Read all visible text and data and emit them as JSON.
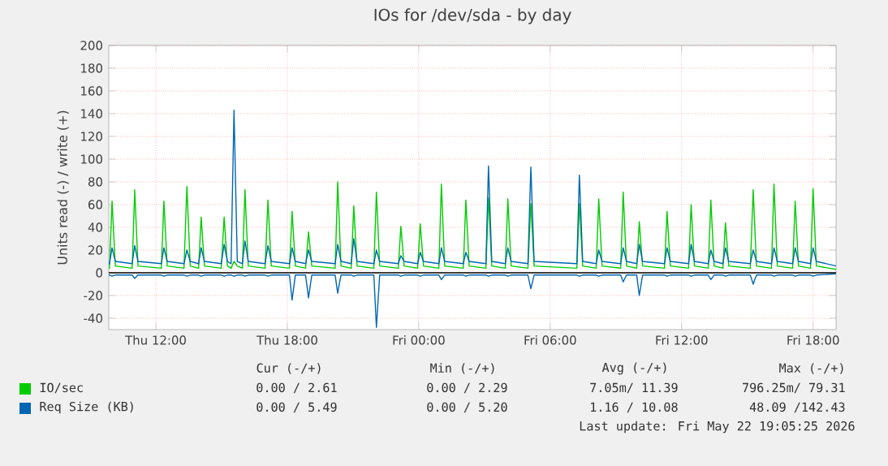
{
  "chart_data": {
    "type": "line",
    "title": "IOs for /dev/sda - by day",
    "ylabel": "Units read (-) / write (+)",
    "x": [
      "2026-05-21T09:51",
      "2026-05-21T09:53",
      "2026-05-21T10:00",
      "2026-05-21T10:09",
      "2026-05-21T10:55",
      "2026-05-21T11:02",
      "2026-05-21T11:11",
      "2026-05-21T12:15",
      "2026-05-21T12:22",
      "2026-05-21T12:31",
      "2026-05-21T13:17",
      "2026-05-21T13:25",
      "2026-05-21T13:34",
      "2026-05-21T13:57",
      "2026-05-21T14:04",
      "2026-05-21T14:13",
      "2026-05-21T14:59",
      "2026-05-21T15:07",
      "2026-05-21T15:16",
      "2026-05-21T15:26",
      "2026-05-21T15:34",
      "2026-05-21T15:43",
      "2026-05-21T15:57",
      "2026-05-21T16:04",
      "2026-05-21T16:13",
      "2026-05-21T16:59",
      "2026-05-21T17:07",
      "2026-05-21T17:16",
      "2026-05-21T18:06",
      "2026-05-21T18:13",
      "2026-05-21T18:22",
      "2026-05-21T18:50",
      "2026-05-21T18:58",
      "2026-05-21T19:07",
      "2026-05-21T20:11",
      "2026-05-21T20:18",
      "2026-05-21T20:27",
      "2026-05-21T20:55",
      "2026-05-21T21:02",
      "2026-05-21T21:11",
      "2026-05-21T21:57",
      "2026-05-21T22:04",
      "2026-05-21T22:13",
      "2026-05-21T23:04",
      "2026-05-21T23:11",
      "2026-05-21T23:20",
      "2026-05-21T23:57",
      "2026-05-22T00:04",
      "2026-05-22T00:13",
      "2026-05-22T00:55",
      "2026-05-22T01:02",
      "2026-05-22T01:11",
      "2026-05-22T02:02",
      "2026-05-22T02:09",
      "2026-05-22T02:18",
      "2026-05-22T03:04",
      "2026-05-22T03:11",
      "2026-05-22T03:20",
      "2026-05-22T03:57",
      "2026-05-22T04:04",
      "2026-05-22T04:13",
      "2026-05-22T04:59",
      "2026-05-22T05:07",
      "2026-05-22T05:16",
      "2026-05-22T07:13",
      "2026-05-22T07:20",
      "2026-05-22T07:29",
      "2026-05-22T08:06",
      "2026-05-22T08:13",
      "2026-05-22T08:22",
      "2026-05-22T09:13",
      "2026-05-22T09:20",
      "2026-05-22T09:29",
      "2026-05-22T09:57",
      "2026-05-22T10:04",
      "2026-05-22T10:13",
      "2026-05-22T11:13",
      "2026-05-22T11:20",
      "2026-05-22T11:29",
      "2026-05-22T12:19",
      "2026-05-22T12:26",
      "2026-05-22T12:35",
      "2026-05-22T13:13",
      "2026-05-22T13:20",
      "2026-05-22T13:29",
      "2026-05-22T13:53",
      "2026-05-22T14:00",
      "2026-05-22T14:09",
      "2026-05-22T15:08",
      "2026-05-22T15:16",
      "2026-05-22T15:25",
      "2026-05-22T16:06",
      "2026-05-22T16:13",
      "2026-05-22T16:22",
      "2026-05-22T17:04",
      "2026-05-22T17:11",
      "2026-05-22T17:20",
      "2026-05-22T17:53",
      "2026-05-22T18:00",
      "2026-05-22T18:09",
      "2026-05-22T19:03"
    ],
    "series": [
      {
        "name": "IO/sec",
        "color": "#00cc00",
        "values": [
          4,
          4,
          63,
          6,
          4,
          73,
          6,
          4,
          63,
          6,
          4,
          76,
          6,
          4,
          49,
          6,
          4,
          49,
          6,
          4,
          10,
          6,
          4,
          73,
          6,
          4,
          64,
          6,
          4,
          54,
          6,
          4,
          36,
          6,
          4,
          80,
          6,
          4,
          59,
          6,
          4,
          71,
          6,
          4,
          41,
          6,
          4,
          43,
          6,
          4,
          78,
          6,
          4,
          64,
          6,
          4,
          66,
          6,
          4,
          65,
          6,
          4,
          61,
          6,
          4,
          61,
          6,
          4,
          65,
          6,
          4,
          71,
          6,
          4,
          45,
          6,
          4,
          54,
          6,
          4,
          60,
          6,
          4,
          64,
          6,
          4,
          44,
          6,
          4,
          73,
          6,
          4,
          78,
          6,
          4,
          63,
          6,
          4,
          74,
          6,
          3
        ]
      },
      {
        "name": "Req Size (KB)",
        "color": "#0066b3",
        "values": [
          8,
          8,
          22,
          10,
          8,
          24,
          10,
          8,
          22,
          10,
          8,
          20,
          10,
          8,
          22,
          10,
          8,
          25,
          10,
          8,
          143,
          10,
          8,
          28,
          10,
          8,
          24,
          10,
          8,
          22,
          10,
          8,
          20,
          10,
          8,
          25,
          10,
          8,
          30,
          10,
          8,
          20,
          10,
          8,
          15,
          10,
          8,
          18,
          10,
          8,
          22,
          10,
          8,
          18,
          10,
          8,
          94,
          10,
          8,
          22,
          10,
          8,
          93,
          10,
          8,
          86,
          10,
          8,
          20,
          10,
          8,
          22,
          10,
          8,
          25,
          10,
          8,
          22,
          10,
          8,
          25,
          10,
          8,
          20,
          10,
          8,
          22,
          10,
          8,
          20,
          10,
          8,
          22,
          10,
          8,
          22,
          10,
          8,
          22,
          10,
          6
        ]
      },
      {
        "color": "#0066b3",
        "values": [
          -2,
          -2,
          -3,
          -2,
          -2,
          -5,
          -2,
          -2,
          -3,
          -2,
          -2,
          -3,
          -2,
          -2,
          -3,
          -2,
          -2,
          -3,
          -2,
          -2,
          -3,
          -2,
          -2,
          -3,
          -2,
          -2,
          -3,
          -2,
          -2,
          -24,
          -2,
          -2,
          -22,
          -2,
          -2,
          -18,
          -2,
          -2,
          -3,
          -2,
          -2,
          -48,
          -2,
          -2,
          -3,
          -2,
          -2,
          -3,
          -2,
          -2,
          -6,
          -2,
          -2,
          -3,
          -2,
          -2,
          -3,
          -2,
          -2,
          -3,
          -2,
          -2,
          -14,
          -2,
          -2,
          -3,
          -2,
          -2,
          -3,
          -2,
          -2,
          -8,
          -2,
          -2,
          -20,
          -2,
          -2,
          -3,
          -2,
          -2,
          -3,
          -2,
          -2,
          -6,
          -2,
          -2,
          -3,
          -2,
          -2,
          -10,
          -2,
          -2,
          -3,
          -2,
          -2,
          -3,
          -2,
          -2,
          -3,
          -2,
          -1
        ]
      }
    ],
    "xlim": [
      "2026-05-21T09:51",
      "2026-05-22T19:03"
    ],
    "xticks": [
      {
        "value": "2026-05-21T12:00",
        "label": "Thu 12:00"
      },
      {
        "value": "2026-05-21T18:00",
        "label": "Thu 18:00"
      },
      {
        "value": "2026-05-22T00:00",
        "label": "Fri 00:00"
      },
      {
        "value": "2026-05-22T06:00",
        "label": "Fri 06:00"
      },
      {
        "value": "2026-05-22T12:00",
        "label": "Fri 12:00"
      },
      {
        "value": "2026-05-22T18:00",
        "label": "Fri 18:00"
      }
    ],
    "ylim": [
      -50,
      200
    ],
    "yticks": [
      -40,
      -20,
      0,
      20,
      40,
      60,
      80,
      100,
      120,
      140,
      160,
      180,
      200
    ],
    "ref_lines": [
      {
        "axis": "y",
        "value": 0,
        "color": "#000000"
      }
    ],
    "grid": true,
    "legend": "bottom",
    "marker": "none",
    "annotations": [
      "Cur (-/+)",
      "Min (-/+)",
      "Avg (-/+)",
      "Max (-/+)",
      "0.00 / 2.61",
      "0.00 / 2.29",
      "7.05m/ 11.39",
      "796.25m/ 79.31",
      "0.00 / 5.49",
      "0.00 / 5.20",
      "1.16 / 10.08",
      "48.09 /142.43",
      "Last update: Fri May 22 19:05:25 2026"
    ]
  }
}
